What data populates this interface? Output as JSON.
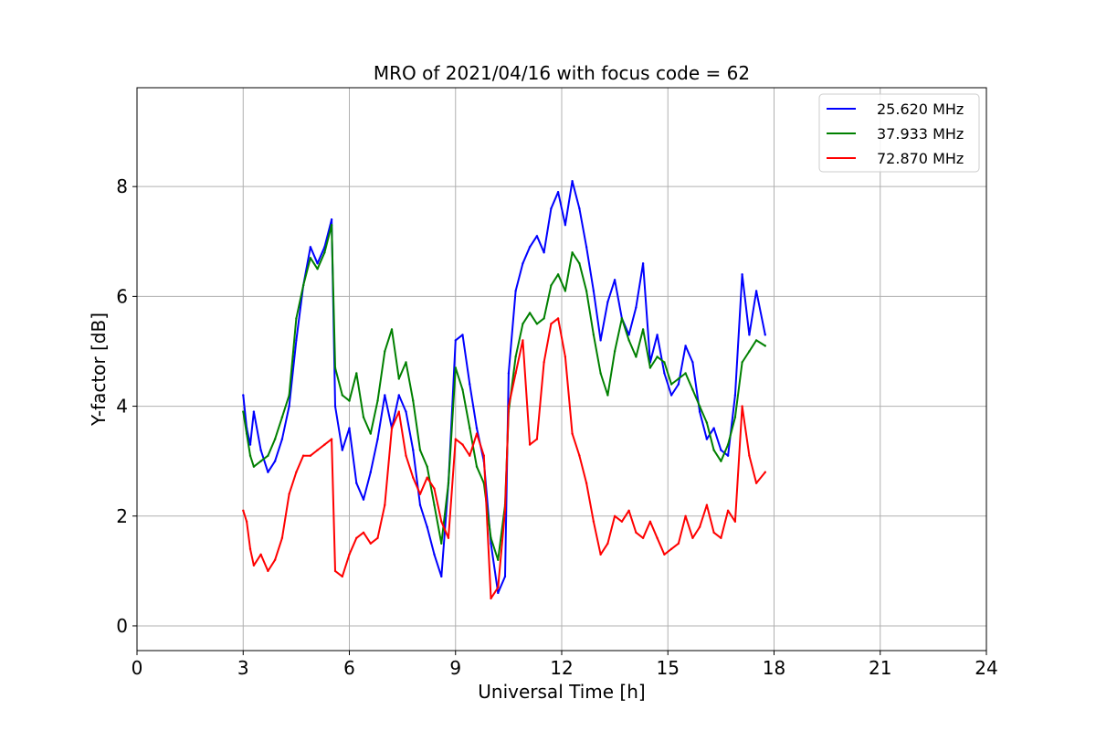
{
  "chart_data": {
    "type": "line",
    "title": "MRO of 2021/04/16 with focus code = 62",
    "xlabel": "Universal Time [h]",
    "ylabel": "Y-factor [dB]",
    "xlim": [
      0,
      24
    ],
    "ylim": [
      -0.45,
      9.8
    ],
    "xticks": [
      0,
      3,
      6,
      9,
      12,
      15,
      18,
      21,
      24
    ],
    "yticks": [
      0,
      2,
      4,
      6,
      8
    ],
    "grid": true,
    "legend_position": "top-right",
    "series": [
      {
        "name": "25.620 MHz",
        "color": "#0000ff",
        "x": [
          3.0,
          3.1,
          3.2,
          3.3,
          3.5,
          3.7,
          3.9,
          4.1,
          4.3,
          4.5,
          4.7,
          4.9,
          5.1,
          5.3,
          5.5,
          5.6,
          5.8,
          6.0,
          6.2,
          6.4,
          6.6,
          6.8,
          7.0,
          7.2,
          7.4,
          7.6,
          7.8,
          8.0,
          8.2,
          8.4,
          8.6,
          8.8,
          9.0,
          9.2,
          9.4,
          9.6,
          9.8,
          10.0,
          10.2,
          10.4,
          10.5,
          10.7,
          10.9,
          11.1,
          11.3,
          11.5,
          11.7,
          11.9,
          12.1,
          12.3,
          12.5,
          12.7,
          12.9,
          13.1,
          13.3,
          13.5,
          13.7,
          13.9,
          14.1,
          14.3,
          14.5,
          14.7,
          14.9,
          15.1,
          15.3,
          15.5,
          15.7,
          15.9,
          16.1,
          16.3,
          16.5,
          16.7,
          16.9,
          17.1,
          17.3,
          17.5,
          17.75
        ],
        "y": [
          4.2,
          3.6,
          3.3,
          3.9,
          3.2,
          2.8,
          3.0,
          3.4,
          4.0,
          5.2,
          6.2,
          6.9,
          6.6,
          6.9,
          7.4,
          4.0,
          3.2,
          3.6,
          2.6,
          2.3,
          2.8,
          3.4,
          4.2,
          3.6,
          4.2,
          3.9,
          3.2,
          2.2,
          1.8,
          1.3,
          0.9,
          2.6,
          5.2,
          5.3,
          4.4,
          3.6,
          3.0,
          1.5,
          0.6,
          0.9,
          4.6,
          6.1,
          6.6,
          6.9,
          7.1,
          6.8,
          7.6,
          7.9,
          7.3,
          8.1,
          7.6,
          6.9,
          6.1,
          5.2,
          5.9,
          6.3,
          5.6,
          5.3,
          5.8,
          6.6,
          4.8,
          5.3,
          4.6,
          4.2,
          4.4,
          5.1,
          4.8,
          3.9,
          3.4,
          3.6,
          3.2,
          3.1,
          4.2,
          6.4,
          5.3,
          6.1,
          5.3
        ]
      },
      {
        "name": "37.933 MHz",
        "color": "#008000",
        "x": [
          3.0,
          3.1,
          3.2,
          3.3,
          3.5,
          3.7,
          3.9,
          4.1,
          4.3,
          4.5,
          4.7,
          4.9,
          5.1,
          5.3,
          5.5,
          5.6,
          5.8,
          6.0,
          6.2,
          6.4,
          6.6,
          6.8,
          7.0,
          7.2,
          7.4,
          7.6,
          7.8,
          8.0,
          8.2,
          8.4,
          8.6,
          8.8,
          9.0,
          9.2,
          9.4,
          9.6,
          9.8,
          10.0,
          10.2,
          10.4,
          10.5,
          10.7,
          10.9,
          11.1,
          11.3,
          11.5,
          11.7,
          11.9,
          12.1,
          12.3,
          12.5,
          12.7,
          12.9,
          13.1,
          13.3,
          13.5,
          13.7,
          13.9,
          14.1,
          14.3,
          14.5,
          14.7,
          14.9,
          15.1,
          15.3,
          15.5,
          15.7,
          15.9,
          16.1,
          16.3,
          16.5,
          16.7,
          16.9,
          17.1,
          17.3,
          17.5,
          17.75
        ],
        "y": [
          3.9,
          3.5,
          3.1,
          2.9,
          3.0,
          3.1,
          3.4,
          3.8,
          4.2,
          5.6,
          6.2,
          6.7,
          6.5,
          6.8,
          7.3,
          4.7,
          4.2,
          4.1,
          4.6,
          3.8,
          3.5,
          4.1,
          5.0,
          5.4,
          4.5,
          4.8,
          4.1,
          3.2,
          2.9,
          2.2,
          1.5,
          2.6,
          4.7,
          4.3,
          3.6,
          2.9,
          2.6,
          1.6,
          1.2,
          2.2,
          3.9,
          4.9,
          5.5,
          5.7,
          5.5,
          5.6,
          6.2,
          6.4,
          6.1,
          6.8,
          6.6,
          6.1,
          5.3,
          4.6,
          4.2,
          5.0,
          5.6,
          5.2,
          4.9,
          5.4,
          4.7,
          4.9,
          4.8,
          4.4,
          4.5,
          4.6,
          4.3,
          4.0,
          3.7,
          3.2,
          3.0,
          3.3,
          3.8,
          4.8,
          5.0,
          5.2,
          5.1
        ]
      },
      {
        "name": "72.870 MHz",
        "color": "#ff0000",
        "x": [
          3.0,
          3.1,
          3.2,
          3.3,
          3.5,
          3.7,
          3.9,
          4.1,
          4.3,
          4.5,
          4.7,
          4.9,
          5.1,
          5.3,
          5.5,
          5.6,
          5.8,
          6.0,
          6.2,
          6.4,
          6.6,
          6.8,
          7.0,
          7.2,
          7.4,
          7.6,
          7.8,
          8.0,
          8.2,
          8.4,
          8.6,
          8.8,
          9.0,
          9.2,
          9.4,
          9.6,
          9.8,
          10.0,
          10.2,
          10.4,
          10.5,
          10.7,
          10.9,
          11.1,
          11.3,
          11.5,
          11.7,
          11.9,
          12.1,
          12.3,
          12.5,
          12.7,
          12.9,
          13.1,
          13.3,
          13.5,
          13.7,
          13.9,
          14.1,
          14.3,
          14.5,
          14.7,
          14.9,
          15.1,
          15.3,
          15.5,
          15.7,
          15.9,
          16.1,
          16.3,
          16.5,
          16.7,
          16.9,
          17.1,
          17.3,
          17.5,
          17.75
        ],
        "y": [
          2.1,
          1.9,
          1.4,
          1.1,
          1.3,
          1.0,
          1.2,
          1.6,
          2.4,
          2.8,
          3.1,
          3.1,
          3.2,
          3.3,
          3.4,
          1.0,
          0.9,
          1.3,
          1.6,
          1.7,
          1.5,
          1.6,
          2.2,
          3.6,
          3.9,
          3.1,
          2.7,
          2.4,
          2.7,
          2.5,
          1.9,
          1.6,
          3.4,
          3.3,
          3.1,
          3.5,
          3.1,
          0.5,
          0.7,
          2.1,
          4.0,
          4.6,
          5.2,
          3.3,
          3.4,
          4.8,
          5.5,
          5.6,
          4.9,
          3.5,
          3.1,
          2.6,
          1.9,
          1.3,
          1.5,
          2.0,
          1.9,
          2.1,
          1.7,
          1.6,
          1.9,
          1.6,
          1.3,
          1.4,
          1.5,
          2.0,
          1.6,
          1.8,
          2.2,
          1.7,
          1.6,
          2.1,
          1.9,
          4.0,
          3.1,
          2.6,
          2.8
        ]
      }
    ]
  }
}
